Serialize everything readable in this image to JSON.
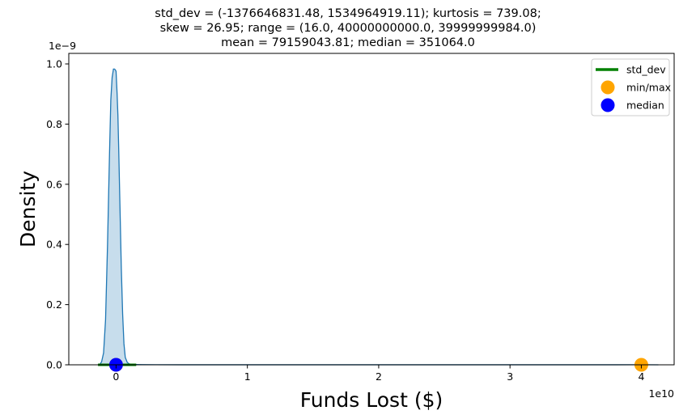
{
  "chart_data": {
    "type": "area",
    "title_lines": [
      "std_dev = (-1376646831.48, 1534964919.11); kurtosis = 739.08;",
      "skew = 26.95; range = (16.0, 40000000000.0, 39999999984.0)",
      "mean = 79159043.81; median = 351064.0"
    ],
    "xlabel": "Funds Lost ($)",
    "ylabel": "Density",
    "x_tick_labels": [
      "0",
      "1",
      "2",
      "3",
      "4"
    ],
    "x_ticks": [
      0,
      10000000000.0,
      20000000000.0,
      30000000000.0,
      40000000000.0
    ],
    "x_multiplier_label": "1e10",
    "y_tick_labels": [
      "0.0",
      "0.2",
      "0.4",
      "0.6",
      "0.8",
      "1.0"
    ],
    "y_ticks": [
      0,
      2e-10,
      4e-10,
      6e-10,
      8e-10,
      1e-09
    ],
    "y_multiplier_label": "1e−9",
    "xlim": [
      -3600000000.0,
      42500000000.0
    ],
    "ylim": [
      0,
      1.035e-09
    ],
    "kde_curve": {
      "x": [
        -1250000000.0,
        -1100000000.0,
        -950000000.0,
        -800000000.0,
        -650000000.0,
        -500000000.0,
        -400000000.0,
        -300000000.0,
        -200000000.0,
        -120000000.0,
        -50000000.0,
        0.0,
        80000000.0,
        140000000.0,
        200000000.0,
        300000000.0,
        400000000.0,
        500000000.0,
        600000000.0,
        700000000.0,
        850000000.0,
        1000000000.0,
        1200000000.0,
        1500000000.0,
        2000000000.0,
        3000000000.0,
        5000000000.0,
        10000000000.0,
        20000000000.0,
        30000000000.0,
        38000000000.0,
        40000000000.0,
        41300000000.0
      ],
      "y": [
        0.0,
        1e-11,
        4e-11,
        1.5e-10,
        4e-10,
        7e-10,
        8.8e-10,
        9.55e-10,
        9.83e-10,
        9.83e-10,
        9.8e-10,
        9.75e-10,
        9e-10,
        8.3e-10,
        7.2e-10,
        5.2e-10,
        3.2e-10,
        1.7e-10,
        7e-11,
        2.5e-11,
        8e-12,
        3e-12,
        1.5e-12,
        1e-12,
        5e-13,
        3e-13,
        2e-13,
        1e-13,
        1e-13,
        1e-13,
        2e-13,
        3e-13,
        0.0
      ]
    },
    "std_dev_range": [
      -1376646831.48,
      1534964919.11
    ],
    "min_max": [
      16.0,
      40000000000.0
    ],
    "median": 351064.0,
    "colors": {
      "curve": "#1f77b4",
      "fill": "#1f77b4",
      "std_dev": "#008000",
      "min_max": "#ffa500",
      "median": "#0000ff"
    },
    "legend": {
      "position": "top-right",
      "entries": [
        {
          "label": "std_dev",
          "kind": "line",
          "color": "#008000"
        },
        {
          "label": "min/max",
          "kind": "marker",
          "color": "#ffa500"
        },
        {
          "label": "median",
          "kind": "marker",
          "color": "#0000ff"
        }
      ]
    }
  }
}
